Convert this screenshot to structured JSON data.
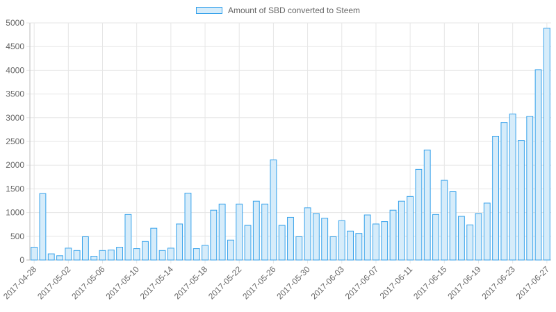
{
  "chart_data": {
    "type": "bar",
    "legend_position": "top",
    "grid": true,
    "series": [
      {
        "name": "Amount of SBD converted to Steem",
        "values": [
          270,
          1400,
          130,
          90,
          250,
          200,
          490,
          80,
          200,
          210,
          270,
          960,
          240,
          390,
          670,
          200,
          250,
          760,
          1410,
          240,
          310,
          1050,
          1180,
          420,
          1180,
          730,
          1240,
          1180,
          2110,
          730,
          900,
          490,
          1100,
          980,
          880,
          490,
          830,
          610,
          560,
          950,
          760,
          810,
          1050,
          1240,
          1340,
          1910,
          2320,
          960,
          1680,
          1440,
          920,
          740,
          980,
          1200,
          2610,
          2900,
          3080,
          2520,
          3030,
          4010,
          4890
        ]
      }
    ],
    "categories": [
      "2017-04-28",
      "2017-04-29",
      "2017-04-30",
      "2017-05-01",
      "2017-05-02",
      "2017-05-03",
      "2017-05-04",
      "2017-05-05",
      "2017-05-06",
      "2017-05-07",
      "2017-05-08",
      "2017-05-09",
      "2017-05-10",
      "2017-05-11",
      "2017-05-12",
      "2017-05-13",
      "2017-05-14",
      "2017-05-15",
      "2017-05-16",
      "2017-05-17",
      "2017-05-18",
      "2017-05-19",
      "2017-05-20",
      "2017-05-21",
      "2017-05-22",
      "2017-05-23",
      "2017-05-24",
      "2017-05-25",
      "2017-05-26",
      "2017-05-27",
      "2017-05-28",
      "2017-05-29",
      "2017-05-30",
      "2017-05-31",
      "2017-06-01",
      "2017-06-02",
      "2017-06-03",
      "2017-06-04",
      "2017-06-05",
      "2017-06-06",
      "2017-06-07",
      "2017-06-08",
      "2017-06-09",
      "2017-06-10",
      "2017-06-11",
      "2017-06-12",
      "2017-06-13",
      "2017-06-14",
      "2017-06-15",
      "2017-06-16",
      "2017-06-17",
      "2017-06-18",
      "2017-06-19",
      "2017-06-20",
      "2017-06-21",
      "2017-06-22",
      "2017-06-23",
      "2017-06-24",
      "2017-06-25",
      "2017-06-26",
      "2017-06-27"
    ],
    "x_tick_labels": [
      "2017-04-28",
      "2017-05-02",
      "2017-05-06",
      "2017-05-10",
      "2017-05-14",
      "2017-05-18",
      "2017-05-22",
      "2017-05-26",
      "2017-05-30",
      "2017-06-03",
      "2017-06-07",
      "2017-06-11",
      "2017-06-15",
      "2017-06-19",
      "2017-06-23",
      "2017-06-27"
    ],
    "y_ticks": [
      0,
      500,
      1000,
      1500,
      2000,
      2500,
      3000,
      3500,
      4000,
      4500,
      5000
    ],
    "ylim": [
      0,
      5000
    ],
    "title": "",
    "xlabel": "",
    "ylabel": "",
    "colors": {
      "bar_fill": "#d6ecfa",
      "bar_border": "#36a2eb",
      "grid": "#e6e6e6",
      "axis": "#bbbbbb",
      "text": "#666666"
    }
  }
}
